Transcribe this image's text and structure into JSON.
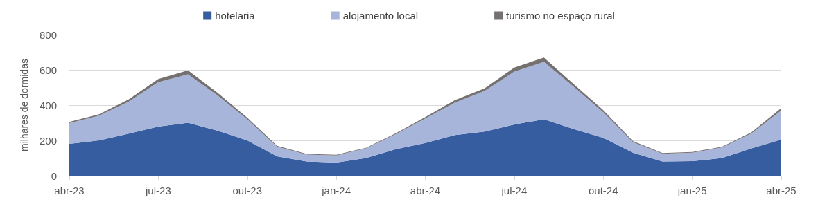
{
  "chart_data": {
    "type": "area",
    "stacked": true,
    "ylabel": "milhares de dormidas",
    "categories": [
      "abr-23",
      null,
      null,
      "jul-23",
      null,
      null,
      "out-23",
      null,
      null,
      "jan-24",
      null,
      null,
      "abr-24",
      null,
      null,
      "jul-24",
      null,
      null,
      "out-24",
      null,
      null,
      "jan-25",
      null,
      null,
      "abr-25"
    ],
    "series": [
      {
        "name": "hotelaria",
        "color": "#365da0",
        "values": [
          180,
          200,
          238,
          278,
          300,
          255,
          200,
          110,
          80,
          75,
          100,
          150,
          185,
          230,
          250,
          290,
          320,
          265,
          215,
          130,
          80,
          82,
          100,
          155,
          205
        ]
      },
      {
        "name": "alojamento local",
        "color": "#a7b5da",
        "values": [
          118,
          140,
          182,
          252,
          275,
          200,
          120,
          55,
          40,
          40,
          55,
          85,
          140,
          185,
          230,
          300,
          325,
          240,
          145,
          60,
          45,
          48,
          60,
          85,
          165
        ]
      },
      {
        "name": "turismo no espaço rural",
        "color": "#767171",
        "values": [
          7,
          8,
          12,
          18,
          22,
          15,
          8,
          5,
          4,
          4,
          3,
          5,
          7,
          13,
          15,
          23,
          25,
          15,
          12,
          6,
          3,
          4,
          4,
          6,
          13
        ]
      }
    ],
    "ylim": [
      0,
      800
    ],
    "yticks": [
      0,
      200,
      400,
      600,
      800
    ],
    "grid": "y",
    "legend": "top",
    "marker": "none"
  }
}
